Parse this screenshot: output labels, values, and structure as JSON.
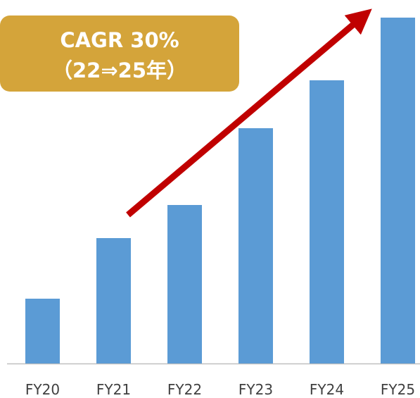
{
  "chart_data": {
    "type": "bar",
    "categories": [
      "FY20",
      "FY21",
      "FY22",
      "FY23",
      "FY24",
      "FY25"
    ],
    "values": [
      92,
      178,
      225,
      334,
      402,
      491
    ],
    "color": "#5b9bd5",
    "annotation": [
      "CAGR 30%",
      "（22⇒25年）"
    ]
  }
}
